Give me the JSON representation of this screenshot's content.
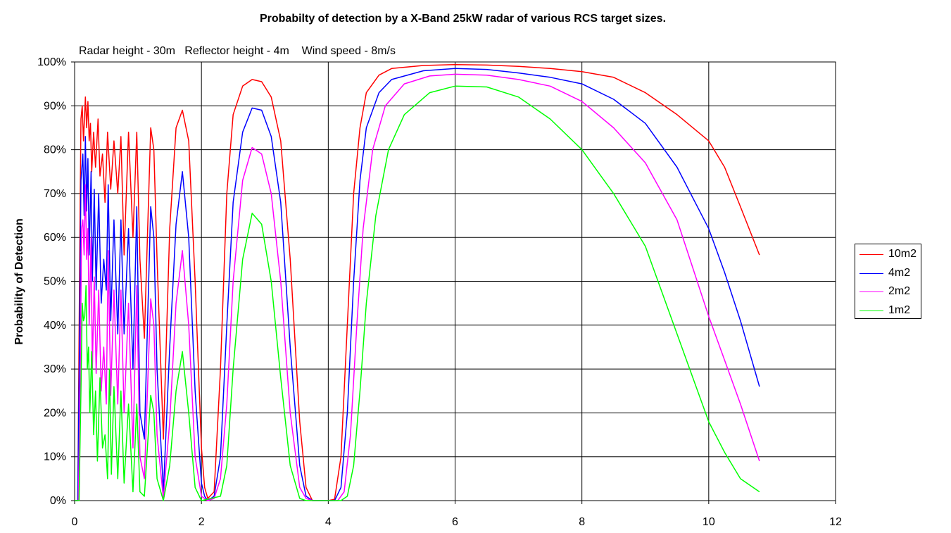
{
  "chart_data": {
    "type": "line",
    "title": "Probabilty of detection by a X-Band 25kW radar of various RCS target sizes.",
    "annotation": "Radar height - 30m   Reflector height - 4m    Wind speed - 8m/s",
    "xlabel": "",
    "ylabel": "Probability of Detection",
    "xlim": [
      0,
      12
    ],
    "ylim": [
      0,
      100
    ],
    "x_ticks": [
      "0",
      "2",
      "4",
      "6",
      "8",
      "10",
      "12"
    ],
    "y_ticks": [
      "0%",
      "10%",
      "20%",
      "30%",
      "40%",
      "50%",
      "60%",
      "70%",
      "80%",
      "90%",
      "100%"
    ],
    "grid": true,
    "legend_position": "right",
    "series": [
      {
        "name": "10m2",
        "color": "#ff0000",
        "points": [
          [
            0,
            0
          ],
          [
            0.05,
            0
          ],
          [
            0.08,
            55
          ],
          [
            0.1,
            87
          ],
          [
            0.12,
            90
          ],
          [
            0.14,
            82
          ],
          [
            0.17,
            92
          ],
          [
            0.19,
            85
          ],
          [
            0.21,
            91
          ],
          [
            0.23,
            82
          ],
          [
            0.25,
            86
          ],
          [
            0.27,
            75
          ],
          [
            0.3,
            84
          ],
          [
            0.33,
            76
          ],
          [
            0.37,
            87
          ],
          [
            0.4,
            74
          ],
          [
            0.44,
            79
          ],
          [
            0.48,
            68
          ],
          [
            0.52,
            84
          ],
          [
            0.57,
            71
          ],
          [
            0.62,
            82
          ],
          [
            0.68,
            70
          ],
          [
            0.73,
            83
          ],
          [
            0.78,
            56
          ],
          [
            0.85,
            84
          ],
          [
            0.92,
            60
          ],
          [
            0.98,
            84
          ],
          [
            1.03,
            55
          ],
          [
            1.1,
            37
          ],
          [
            1.2,
            85
          ],
          [
            1.25,
            80
          ],
          [
            1.3,
            55
          ],
          [
            1.4,
            14
          ],
          [
            1.5,
            62
          ],
          [
            1.6,
            85
          ],
          [
            1.7,
            89
          ],
          [
            1.8,
            82
          ],
          [
            1.9,
            50
          ],
          [
            2.0,
            12
          ],
          [
            2.05,
            3
          ],
          [
            2.1,
            0.5
          ],
          [
            2.2,
            2
          ],
          [
            2.3,
            30
          ],
          [
            2.4,
            70
          ],
          [
            2.5,
            88
          ],
          [
            2.65,
            94.5
          ],
          [
            2.8,
            96
          ],
          [
            2.95,
            95.5
          ],
          [
            3.1,
            92
          ],
          [
            3.25,
            82
          ],
          [
            3.4,
            55
          ],
          [
            3.55,
            18
          ],
          [
            3.65,
            3
          ],
          [
            3.75,
            0
          ],
          [
            4.0,
            0
          ],
          [
            4.1,
            0.3
          ],
          [
            4.2,
            10
          ],
          [
            4.3,
            40
          ],
          [
            4.4,
            70
          ],
          [
            4.5,
            85
          ],
          [
            4.6,
            93
          ],
          [
            4.8,
            97
          ],
          [
            5.0,
            98.5
          ],
          [
            5.5,
            99.2
          ],
          [
            6.0,
            99.4
          ],
          [
            6.5,
            99.3
          ],
          [
            7.0,
            99
          ],
          [
            7.5,
            98.5
          ],
          [
            8.0,
            97.8
          ],
          [
            8.5,
            96.5
          ],
          [
            9.0,
            93
          ],
          [
            9.5,
            88
          ],
          [
            10.0,
            82
          ],
          [
            10.25,
            76
          ],
          [
            10.5,
            67
          ],
          [
            10.8,
            56
          ]
        ]
      },
      {
        "name": "4m2",
        "color": "#0000ff",
        "points": [
          [
            0,
            0
          ],
          [
            0.05,
            0
          ],
          [
            0.08,
            40
          ],
          [
            0.1,
            73
          ],
          [
            0.13,
            79
          ],
          [
            0.15,
            65
          ],
          [
            0.17,
            83
          ],
          [
            0.19,
            66
          ],
          [
            0.21,
            78
          ],
          [
            0.23,
            56
          ],
          [
            0.26,
            75
          ],
          [
            0.28,
            50
          ],
          [
            0.31,
            71
          ],
          [
            0.34,
            48
          ],
          [
            0.38,
            70
          ],
          [
            0.42,
            45
          ],
          [
            0.46,
            55
          ],
          [
            0.5,
            48
          ],
          [
            0.53,
            72
          ],
          [
            0.57,
            41
          ],
          [
            0.62,
            64
          ],
          [
            0.68,
            38
          ],
          [
            0.73,
            64
          ],
          [
            0.78,
            38
          ],
          [
            0.85,
            62
          ],
          [
            0.92,
            30
          ],
          [
            0.98,
            67
          ],
          [
            1.03,
            20
          ],
          [
            1.1,
            14
          ],
          [
            1.2,
            67
          ],
          [
            1.25,
            60
          ],
          [
            1.3,
            30
          ],
          [
            1.4,
            2
          ],
          [
            1.5,
            35
          ],
          [
            1.6,
            63
          ],
          [
            1.7,
            75
          ],
          [
            1.8,
            60
          ],
          [
            1.9,
            25
          ],
          [
            2.0,
            4
          ],
          [
            2.05,
            1
          ],
          [
            2.1,
            0
          ],
          [
            2.2,
            1
          ],
          [
            2.3,
            10
          ],
          [
            2.4,
            40
          ],
          [
            2.5,
            68
          ],
          [
            2.65,
            84
          ],
          [
            2.8,
            89.5
          ],
          [
            2.95,
            89
          ],
          [
            3.1,
            83
          ],
          [
            3.25,
            68
          ],
          [
            3.4,
            35
          ],
          [
            3.55,
            8
          ],
          [
            3.65,
            1
          ],
          [
            3.75,
            0
          ],
          [
            4.1,
            0
          ],
          [
            4.2,
            3
          ],
          [
            4.3,
            20
          ],
          [
            4.4,
            50
          ],
          [
            4.5,
            73
          ],
          [
            4.6,
            85
          ],
          [
            4.8,
            93
          ],
          [
            5.0,
            96
          ],
          [
            5.5,
            98
          ],
          [
            6.0,
            98.5
          ],
          [
            6.5,
            98.3
          ],
          [
            7.0,
            97.5
          ],
          [
            7.5,
            96.5
          ],
          [
            8.0,
            95
          ],
          [
            8.5,
            91.5
          ],
          [
            9.0,
            86
          ],
          [
            9.5,
            76
          ],
          [
            10.0,
            62
          ],
          [
            10.25,
            52
          ],
          [
            10.5,
            41
          ],
          [
            10.8,
            26
          ]
        ]
      },
      {
        "name": "2m2",
        "color": "#ff00ff",
        "points": [
          [
            0,
            0
          ],
          [
            0.06,
            0
          ],
          [
            0.09,
            30
          ],
          [
            0.11,
            62
          ],
          [
            0.13,
            64
          ],
          [
            0.15,
            56
          ],
          [
            0.17,
            72
          ],
          [
            0.19,
            55
          ],
          [
            0.21,
            62
          ],
          [
            0.23,
            40
          ],
          [
            0.26,
            60
          ],
          [
            0.28,
            30
          ],
          [
            0.31,
            51
          ],
          [
            0.34,
            29
          ],
          [
            0.38,
            48
          ],
          [
            0.42,
            25
          ],
          [
            0.46,
            35
          ],
          [
            0.5,
            22
          ],
          [
            0.53,
            57
          ],
          [
            0.57,
            24
          ],
          [
            0.62,
            48
          ],
          [
            0.68,
            22
          ],
          [
            0.73,
            48
          ],
          [
            0.78,
            20
          ],
          [
            0.85,
            45
          ],
          [
            0.92,
            12
          ],
          [
            0.98,
            49
          ],
          [
            1.03,
            10
          ],
          [
            1.1,
            5
          ],
          [
            1.2,
            46
          ],
          [
            1.25,
            40
          ],
          [
            1.3,
            15
          ],
          [
            1.4,
            0.5
          ],
          [
            1.5,
            18
          ],
          [
            1.6,
            45
          ],
          [
            1.7,
            57
          ],
          [
            1.8,
            40
          ],
          [
            1.9,
            10
          ],
          [
            2.0,
            1
          ],
          [
            2.1,
            0
          ],
          [
            2.2,
            0.5
          ],
          [
            2.3,
            5
          ],
          [
            2.4,
            22
          ],
          [
            2.5,
            50
          ],
          [
            2.65,
            73
          ],
          [
            2.8,
            80.5
          ],
          [
            2.95,
            79
          ],
          [
            3.1,
            70
          ],
          [
            3.25,
            50
          ],
          [
            3.4,
            20
          ],
          [
            3.55,
            3
          ],
          [
            3.65,
            0.5
          ],
          [
            3.75,
            0
          ],
          [
            4.15,
            0
          ],
          [
            4.25,
            2
          ],
          [
            4.35,
            15
          ],
          [
            4.45,
            40
          ],
          [
            4.55,
            62
          ],
          [
            4.7,
            80
          ],
          [
            4.9,
            90
          ],
          [
            5.2,
            95
          ],
          [
            5.6,
            96.8
          ],
          [
            6.0,
            97.2
          ],
          [
            6.5,
            97
          ],
          [
            7.0,
            96
          ],
          [
            7.5,
            94.5
          ],
          [
            8.0,
            91
          ],
          [
            8.5,
            85
          ],
          [
            9.0,
            77
          ],
          [
            9.5,
            64
          ],
          [
            10.0,
            42
          ],
          [
            10.25,
            32
          ],
          [
            10.5,
            22
          ],
          [
            10.8,
            9
          ]
        ]
      },
      {
        "name": "1m2",
        "color": "#00ff00",
        "points": [
          [
            0,
            0
          ],
          [
            0.07,
            0
          ],
          [
            0.1,
            25
          ],
          [
            0.12,
            45
          ],
          [
            0.14,
            41
          ],
          [
            0.16,
            42
          ],
          [
            0.18,
            49
          ],
          [
            0.2,
            30
          ],
          [
            0.22,
            35
          ],
          [
            0.24,
            20
          ],
          [
            0.27,
            34
          ],
          [
            0.3,
            15
          ],
          [
            0.33,
            25
          ],
          [
            0.36,
            9
          ],
          [
            0.4,
            28
          ],
          [
            0.44,
            12
          ],
          [
            0.48,
            15
          ],
          [
            0.52,
            5
          ],
          [
            0.55,
            30
          ],
          [
            0.58,
            6
          ],
          [
            0.62,
            26
          ],
          [
            0.68,
            5
          ],
          [
            0.73,
            25
          ],
          [
            0.78,
            4
          ],
          [
            0.85,
            22
          ],
          [
            0.92,
            2
          ],
          [
            0.98,
            22
          ],
          [
            1.03,
            2
          ],
          [
            1.1,
            1
          ],
          [
            1.2,
            24
          ],
          [
            1.25,
            20
          ],
          [
            1.3,
            5
          ],
          [
            1.4,
            0
          ],
          [
            1.5,
            8
          ],
          [
            1.6,
            25
          ],
          [
            1.7,
            34
          ],
          [
            1.8,
            20
          ],
          [
            1.9,
            3
          ],
          [
            2.0,
            0
          ],
          [
            2.3,
            1
          ],
          [
            2.4,
            8
          ],
          [
            2.5,
            30
          ],
          [
            2.65,
            55
          ],
          [
            2.8,
            65.5
          ],
          [
            2.95,
            63
          ],
          [
            3.1,
            50
          ],
          [
            3.25,
            28
          ],
          [
            3.4,
            8
          ],
          [
            3.55,
            0.5
          ],
          [
            3.65,
            0
          ],
          [
            4.2,
            0
          ],
          [
            4.3,
            1
          ],
          [
            4.4,
            8
          ],
          [
            4.5,
            25
          ],
          [
            4.6,
            45
          ],
          [
            4.75,
            65
          ],
          [
            4.95,
            80
          ],
          [
            5.2,
            88
          ],
          [
            5.6,
            93
          ],
          [
            6.0,
            94.5
          ],
          [
            6.5,
            94.3
          ],
          [
            7.0,
            92
          ],
          [
            7.5,
            87
          ],
          [
            8.0,
            80
          ],
          [
            8.5,
            70
          ],
          [
            9.0,
            58
          ],
          [
            9.5,
            38
          ],
          [
            10.0,
            18
          ],
          [
            10.25,
            11
          ],
          [
            10.5,
            5
          ],
          [
            10.8,
            2
          ]
        ]
      }
    ]
  }
}
